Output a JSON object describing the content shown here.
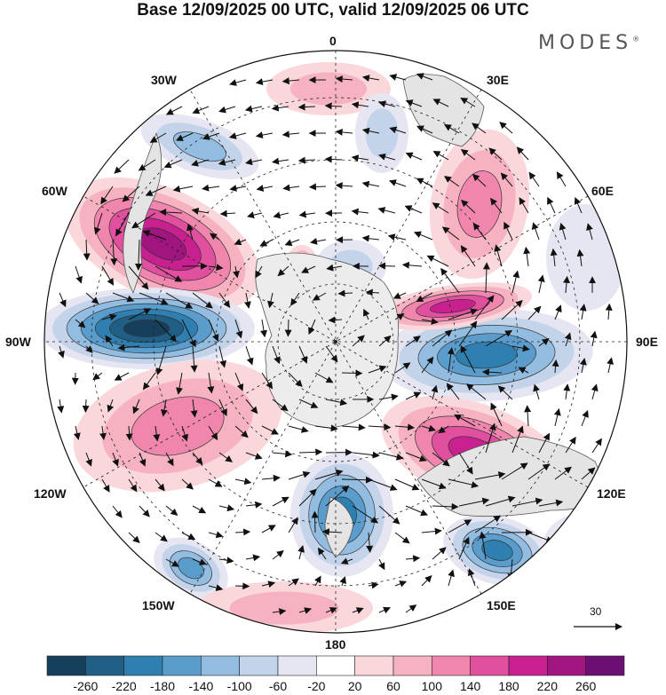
{
  "title": "Base 12/09/2025 00 UTC, valid 12/09/2025 06 UTC",
  "brand": {
    "name": "MODES",
    "mark": "®"
  },
  "longitude_labels": {
    "lon_0": "0",
    "lon_30e": "30E",
    "lon_60e": "60E",
    "lon_90e": "90E",
    "lon_120e": "120E",
    "lon_150e": "150E",
    "lon_180": "180",
    "lon_150w": "150W",
    "lon_120w": "120W",
    "lon_90w": "90W",
    "lon_60w": "60W",
    "lon_30w": "30W"
  },
  "reference_vector": {
    "value": "30"
  },
  "colorbar": {
    "labels": [
      "-260",
      "-220",
      "-180",
      "-140",
      "-100",
      "-60",
      "-20",
      "20",
      "60",
      "100",
      "140",
      "180",
      "220",
      "260"
    ],
    "colors": [
      "#163f5c",
      "#1f5e85",
      "#2f7fb0",
      "#5a9ccb",
      "#93bde0",
      "#c3d3ea",
      "#e6e6f2",
      "#ffffff",
      "#f9d7da",
      "#f6b2c0",
      "#f086ae",
      "#e0509e",
      "#c8208f",
      "#a0157f",
      "#6b0f75"
    ]
  },
  "fill_colors": {
    "neg_weak": "#e6e6f2",
    "neg_light": "#c3d3ea",
    "neg_mid": "#93bde0",
    "neg_strong": "#5a9ccb",
    "neg_deep": "#2f7fb0",
    "neg_max": "#1f5e85",
    "neg_core": "#163f5c",
    "pos_weak": "#f9d7da",
    "pos_light": "#f6b2c0",
    "pos_mid": "#f086ae",
    "pos_strong": "#e0509e",
    "pos_deep": "#c8208f",
    "pos_max": "#a0157f",
    "pos_core": "#6b0f75",
    "land": "#dcdcdc",
    "continent": "#ececec"
  }
}
